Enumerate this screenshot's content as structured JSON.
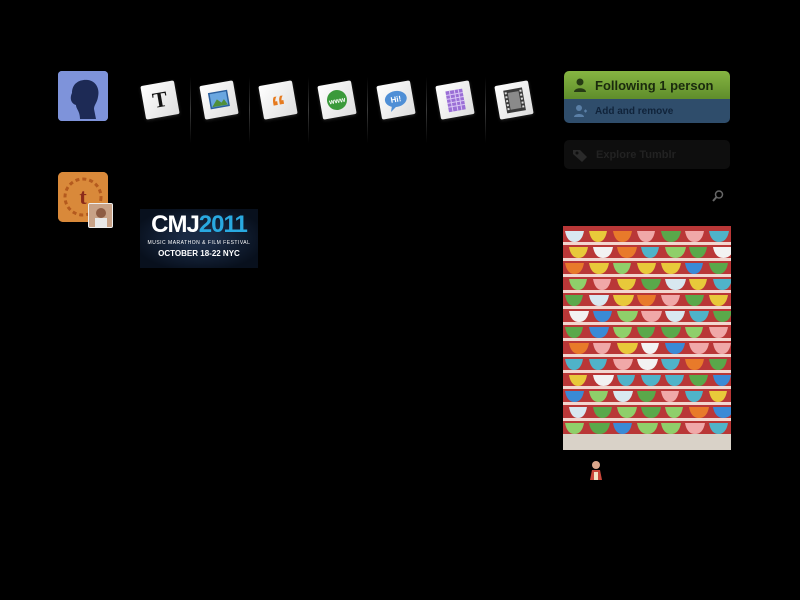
{
  "left": {
    "user_avatar_icon": "silhouette-head",
    "tumblr_avatar_icon": "tumblr-t-laurel"
  },
  "post_types": [
    {
      "id": "text",
      "icon": "text-T",
      "glyph": "T",
      "color": "#111111"
    },
    {
      "id": "photo",
      "icon": "photo",
      "glyph": "",
      "color": "#3a7ac6"
    },
    {
      "id": "quote",
      "icon": "quote",
      "glyph": "“",
      "color": "#e67a1e"
    },
    {
      "id": "link",
      "icon": "link-www",
      "glyph": "www",
      "color": "#3a9a3a"
    },
    {
      "id": "chat",
      "icon": "chat-hi",
      "glyph": "Hi!",
      "color": "#3a7ac6"
    },
    {
      "id": "audio",
      "icon": "audio",
      "glyph": "",
      "color": "#8a5ac8"
    },
    {
      "id": "video",
      "icon": "video-film",
      "glyph": "",
      "color": "#333333"
    }
  ],
  "post": {
    "image": {
      "logo_prefix": "CMJ",
      "logo_year": "2011",
      "subtitle": "MUSIC MARATHON & FILM FESTIVAL",
      "dates": "OCTOBER 18-22 NYC"
    }
  },
  "sidebar": {
    "following_label": "Following 1 person",
    "add_remove_label": "Add and remove",
    "explore_label": "Explore Tumblr",
    "search_icon": "search-icon"
  },
  "colors": {
    "following_green": "#6f9f35",
    "add_blue": "#2f4d6b",
    "background": "#000000"
  }
}
